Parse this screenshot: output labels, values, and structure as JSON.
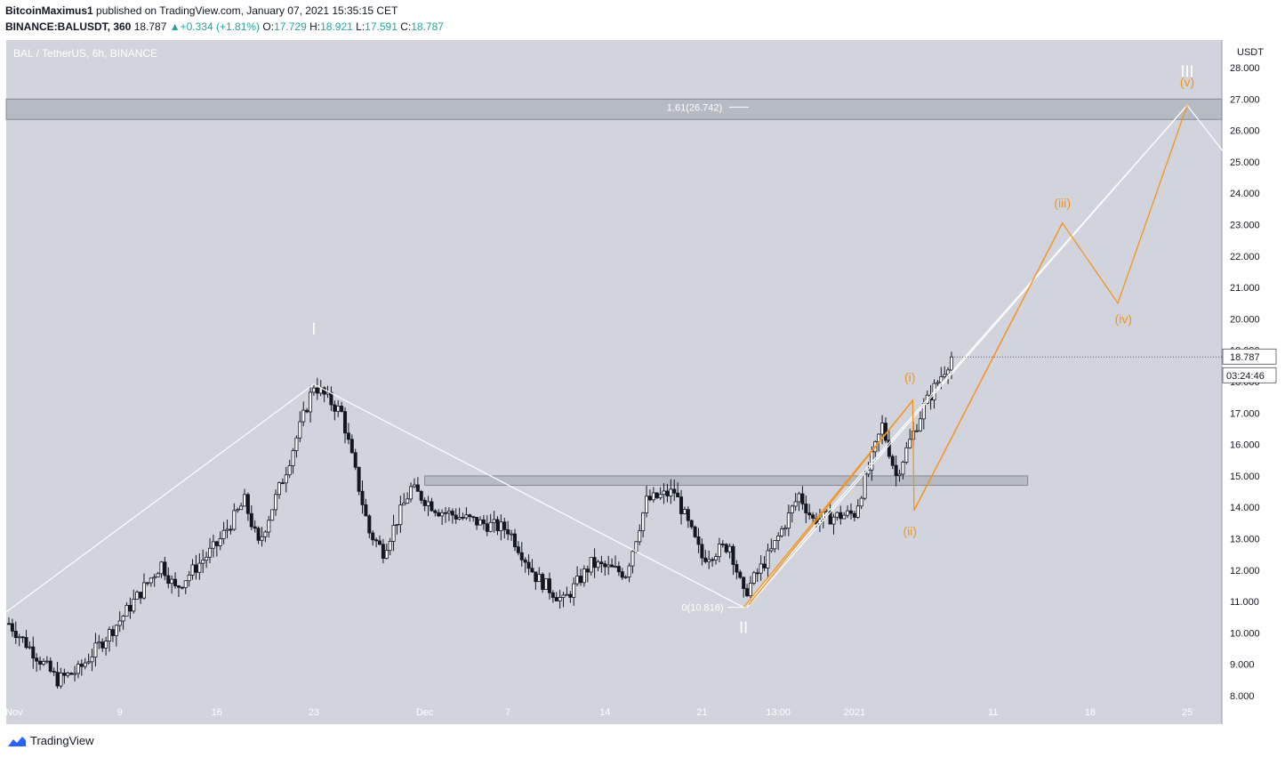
{
  "header": {
    "author": "BitcoinMaximus1",
    "published_text": " published on TradingView.com, January 07, 2021 15:35:15 CET",
    "symbol_line": "BINANCE:BALUSDT, 360",
    "last": "18.787",
    "change": "+0.334 (+1.81%)",
    "o_label": "O:",
    "o": "17.729",
    "h_label": "H:",
    "h": "18.921",
    "l_label": "L:",
    "l": "17.591",
    "c_label": "C:",
    "c": "18.787"
  },
  "chart_title": "BAL / TetherUS, 6h, BINANCE",
  "footer": {
    "brand": "TradingView"
  },
  "colors": {
    "background": "#d1d4dc",
    "axis_background": "#ffffff",
    "candle": "#131722",
    "white_wave": "#ffffff",
    "orange_wave": "#f7931a",
    "zone": "#b2b5be",
    "price_tag": "#ffffff"
  },
  "chart_data": {
    "type": "candlestick",
    "title": "BAL / TetherUS, 6h, BINANCE",
    "y_axis_unit": "USDT",
    "ylim": [
      7.8,
      28.8
    ],
    "y_ticks": [
      "8.000",
      "9.000",
      "10.000",
      "11.000",
      "12.000",
      "13.000",
      "14.000",
      "15.000",
      "16.000",
      "17.000",
      "18.000",
      "19.000",
      "20.000",
      "21.000",
      "22.000",
      "23.000",
      "24.000",
      "25.000",
      "26.000",
      "27.000",
      "28.000"
    ],
    "x_ticks": [
      {
        "label": "Nov",
        "day": 0
      },
      {
        "label": "9",
        "day": 8
      },
      {
        "label": "16",
        "day": 15
      },
      {
        "label": "23",
        "day": 22
      },
      {
        "label": "Dec",
        "day": 30
      },
      {
        "label": "7",
        "day": 36
      },
      {
        "label": "14",
        "day": 43
      },
      {
        "label": "21",
        "day": 50
      },
      {
        "label": "13:00",
        "day": 55.5
      },
      {
        "label": "2021",
        "day": 61
      },
      {
        "label": "11",
        "day": 71
      },
      {
        "label": "18",
        "day": 78
      },
      {
        "label": "25",
        "day": 85
      }
    ],
    "last_price": "18.787",
    "countdown": "03:24:46",
    "ohlc_keypoints": [
      {
        "day": 0,
        "price": 10.3
      },
      {
        "day": 3.5,
        "price": 8.5
      },
      {
        "day": 5,
        "price": 8.8
      },
      {
        "day": 8,
        "price": 10.4
      },
      {
        "day": 11,
        "price": 12.2
      },
      {
        "day": 12,
        "price": 11.4
      },
      {
        "day": 15,
        "price": 12.8
      },
      {
        "day": 17,
        "price": 14.2
      },
      {
        "day": 18,
        "price": 12.8
      },
      {
        "day": 20,
        "price": 15.2
      },
      {
        "day": 22,
        "price": 17.9
      },
      {
        "day": 24,
        "price": 17.0
      },
      {
        "day": 26,
        "price": 13.2
      },
      {
        "day": 27,
        "price": 12.6
      },
      {
        "day": 29,
        "price": 14.6
      },
      {
        "day": 31,
        "price": 13.9
      },
      {
        "day": 34,
        "price": 13.5
      },
      {
        "day": 36,
        "price": 13.3
      },
      {
        "day": 38,
        "price": 11.8
      },
      {
        "day": 40,
        "price": 11.0
      },
      {
        "day": 42,
        "price": 12.2
      },
      {
        "day": 44.5,
        "price": 11.9
      },
      {
        "day": 46,
        "price": 14.2
      },
      {
        "day": 48,
        "price": 14.5
      },
      {
        "day": 50,
        "price": 12.4
      },
      {
        "day": 52,
        "price": 12.8
      },
      {
        "day": 53,
        "price": 11.2
      },
      {
        "day": 55,
        "price": 12.6
      },
      {
        "day": 57,
        "price": 14.4
      },
      {
        "day": 58,
        "price": 13.6
      },
      {
        "day": 61,
        "price": 13.8
      },
      {
        "day": 63,
        "price": 16.6
      },
      {
        "day": 64,
        "price": 15.0
      },
      {
        "day": 66,
        "price": 17.2
      },
      {
        "day": 68,
        "price": 18.787
      }
    ],
    "fib_levels": [
      {
        "label": "1.61(26.742)",
        "price": 26.742
      },
      {
        "label": "0(10.816)",
        "price": 10.816
      }
    ],
    "zones": [
      {
        "name": "target zone",
        "top": 27.0,
        "bottom": 26.35,
        "day_start": -1,
        "day_end": 88
      },
      {
        "name": "resistance zone",
        "top": 15.0,
        "bottom": 14.7,
        "day_start": 30,
        "day_end": 73.5
      }
    ],
    "white_wave": {
      "points": [
        {
          "day": -1,
          "price": 10.4
        },
        {
          "day": 22,
          "price": 17.92
        },
        {
          "day": 53,
          "price": 10.816
        },
        {
          "day": 85,
          "price": 26.8
        },
        {
          "day": 88,
          "price": 25.1
        }
      ],
      "labels": [
        {
          "text": "I",
          "day": 22,
          "price": 19.5
        },
        {
          "text": "II",
          "day": 53,
          "price": 10.0
        },
        {
          "text": "III",
          "day": 85,
          "price": 27.7
        }
      ]
    },
    "white_channel": [
      {
        "day": 53,
        "price": 10.816
      },
      {
        "day": 85,
        "price": 26.8
      }
    ],
    "orange_wave": {
      "points": [
        {
          "day": 53,
          "price": 10.816
        },
        {
          "day": 65.2,
          "price": 17.4
        },
        {
          "day": 65.3,
          "price": 13.9
        },
        {
          "day": 76,
          "price": 23.05
        },
        {
          "day": 80,
          "price": 20.5
        },
        {
          "day": 85,
          "price": 26.8
        }
      ],
      "labels": [
        {
          "text": "(i)",
          "day": 65,
          "price": 18.0
        },
        {
          "text": "(ii)",
          "day": 65,
          "price": 13.1
        },
        {
          "text": "(iii)",
          "day": 76,
          "price": 23.55
        },
        {
          "text": "(iv)",
          "day": 80.4,
          "price": 19.85
        },
        {
          "text": "(v)",
          "day": 85,
          "price": 27.4
        }
      ]
    }
  }
}
